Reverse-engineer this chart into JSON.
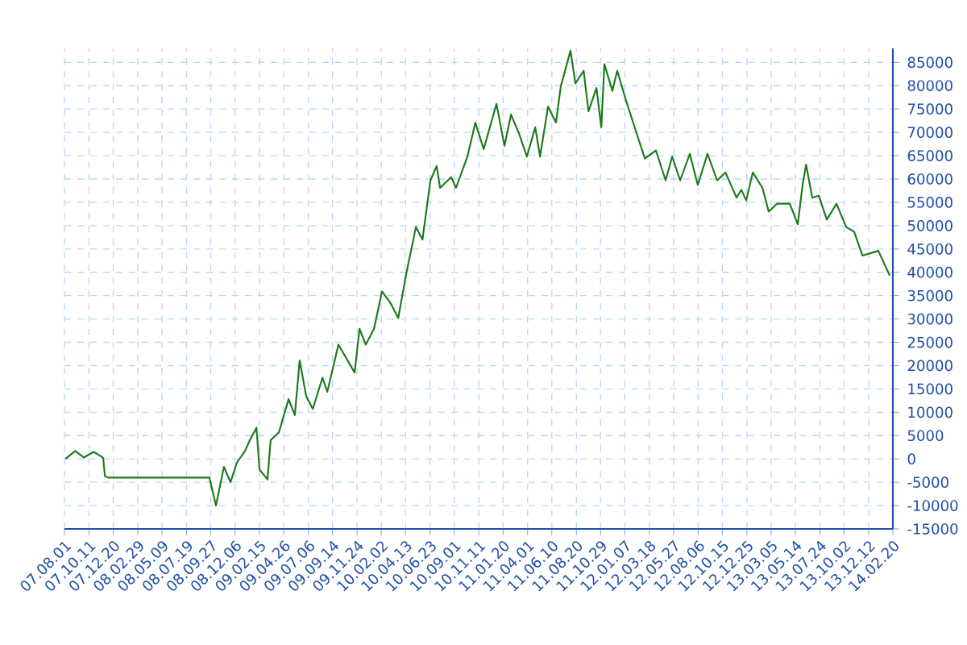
{
  "chart_data": {
    "type": "line",
    "color": "#1a7a1a",
    "grid": true,
    "marker": "none",
    "line_style": "solid",
    "xlim": [
      "2007-08-01",
      "2014-02-20"
    ],
    "xticks": [
      {
        "value": "2007-08-01",
        "label": "07.08.01"
      },
      {
        "value": "2007-10-11",
        "label": "07.10.11"
      },
      {
        "value": "2007-12-20",
        "label": "07.12.20"
      },
      {
        "value": "2008-02-29",
        "label": "08.02.29"
      },
      {
        "value": "2008-05-09",
        "label": "08.05.09"
      },
      {
        "value": "2008-07-19",
        "label": "08.07.19"
      },
      {
        "value": "2008-09-27",
        "label": "08.09.27"
      },
      {
        "value": "2008-12-06",
        "label": "08.12.06"
      },
      {
        "value": "2009-02-15",
        "label": "09.02.15"
      },
      {
        "value": "2009-04-26",
        "label": "09.04.26"
      },
      {
        "value": "2009-07-06",
        "label": "09.07.06"
      },
      {
        "value": "2009-09-14",
        "label": "09.09.14"
      },
      {
        "value": "2009-11-24",
        "label": "09.11.24"
      },
      {
        "value": "2010-02-02",
        "label": "10.02.02"
      },
      {
        "value": "2010-04-13",
        "label": "10.04.13"
      },
      {
        "value": "2010-06-23",
        "label": "10.06.23"
      },
      {
        "value": "2010-09-01",
        "label": "10.09.01"
      },
      {
        "value": "2010-11-11",
        "label": "10.11.11"
      },
      {
        "value": "2011-01-20",
        "label": "11.01.20"
      },
      {
        "value": "2011-04-01",
        "label": "11.04.01"
      },
      {
        "value": "2011-06-10",
        "label": "11.06.10"
      },
      {
        "value": "2011-08-20",
        "label": "11.08.20"
      },
      {
        "value": "2011-10-29",
        "label": "11.10.29"
      },
      {
        "value": "2012-01-07",
        "label": "12.01.07"
      },
      {
        "value": "2012-03-18",
        "label": "12.03.18"
      },
      {
        "value": "2012-05-27",
        "label": "12.05.27"
      },
      {
        "value": "2012-08-06",
        "label": "12.08.06"
      },
      {
        "value": "2012-10-15",
        "label": "12.10.15"
      },
      {
        "value": "2012-12-25",
        "label": "12.12.25"
      },
      {
        "value": "2013-03-05",
        "label": "13.03.05"
      },
      {
        "value": "2013-05-14",
        "label": "13.05.14"
      },
      {
        "value": "2013-07-24",
        "label": "13.07.24"
      },
      {
        "value": "2013-10-02",
        "label": "13.10.02"
      },
      {
        "value": "2013-12-12",
        "label": "13.12.12"
      },
      {
        "value": "2014-02-20",
        "label": "14.02.20"
      }
    ],
    "ylim": [
      -15000,
      88000
    ],
    "yticks": [
      -15000,
      -10000,
      -5000,
      0,
      5000,
      10000,
      15000,
      20000,
      25000,
      30000,
      35000,
      40000,
      45000,
      50000,
      55000,
      60000,
      65000,
      70000,
      75000,
      80000,
      85000
    ],
    "x": [
      "2007-08-04",
      "2007-09-01",
      "2007-09-26",
      "2007-10-24",
      "2007-11-12",
      "2007-11-21",
      "2007-11-26",
      "2007-12-05",
      "2008-09-23",
      "2008-10-12",
      "2008-11-04",
      "2008-11-23",
      "2008-12-12",
      "2009-01-04",
      "2009-01-18",
      "2009-02-06",
      "2009-02-15",
      "2009-03-10",
      "2009-03-19",
      "2009-04-12",
      "2009-05-10",
      "2009-05-28",
      "2009-06-11",
      "2009-06-30",
      "2009-07-19",
      "2009-08-16",
      "2009-08-30",
      "2009-10-01",
      "2009-11-17",
      "2009-12-01",
      "2009-12-19",
      "2010-01-12",
      "2010-02-04",
      "2010-02-27",
      "2010-03-23",
      "2010-04-15",
      "2010-05-13",
      "2010-06-01",
      "2010-06-24",
      "2010-07-12",
      "2010-07-22",
      "2010-08-23",
      "2010-09-06",
      "2010-10-09",
      "2010-11-01",
      "2010-11-25",
      "2011-01-01",
      "2011-01-24",
      "2011-02-12",
      "2011-03-07",
      "2011-03-30",
      "2011-04-23",
      "2011-05-07",
      "2011-05-30",
      "2011-06-22",
      "2011-07-06",
      "2011-08-03",
      "2011-08-17",
      "2011-09-10",
      "2011-09-24",
      "2011-10-17",
      "2011-10-31",
      "2011-11-09",
      "2011-12-02",
      "2011-12-16",
      "2012-01-09",
      "2012-02-10",
      "2012-03-05",
      "2012-04-06",
      "2012-05-04",
      "2012-05-23",
      "2012-06-15",
      "2012-07-13",
      "2012-08-05",
      "2012-09-02",
      "2012-09-30",
      "2012-10-24",
      "2012-11-25",
      "2012-12-09",
      "2012-12-23",
      "2013-01-11",
      "2013-02-08",
      "2013-02-26",
      "2013-03-22",
      "2013-04-28",
      "2013-05-21",
      "2013-06-04",
      "2013-06-14",
      "2013-07-02",
      "2013-07-21",
      "2013-08-13",
      "2013-09-10",
      "2013-10-08",
      "2013-10-31",
      "2013-11-24",
      "2014-01-09",
      "2014-02-11"
    ],
    "values": [
      0,
      1700,
      300,
      1500,
      700,
      200,
      -3700,
      -4000,
      -4000,
      -10000,
      -1700,
      -5000,
      -700,
      1700,
      4000,
      6700,
      -2300,
      -4400,
      4000,
      5700,
      12800,
      9400,
      21100,
      13400,
      10700,
      17400,
      14400,
      24500,
      18500,
      27900,
      24500,
      27900,
      35900,
      33600,
      30200,
      39600,
      49700,
      47000,
      59700,
      62800,
      58100,
      60400,
      58100,
      64800,
      72100,
      66400,
      76100,
      67100,
      73800,
      69800,
      64800,
      71100,
      64800,
      75500,
      72100,
      79900,
      87500,
      80500,
      83200,
      74500,
      79500,
      71100,
      84600,
      78900,
      83200,
      77200,
      69800,
      64400,
      66100,
      59700,
      64800,
      59700,
      65400,
      58700,
      65400,
      59700,
      61400,
      56000,
      57700,
      55400,
      61400,
      58100,
      53000,
      54700,
      54700,
      50300,
      58700,
      63100,
      56000,
      56400,
      51300,
      54700,
      49700,
      48700,
      43600,
      44600,
      39300
    ]
  }
}
